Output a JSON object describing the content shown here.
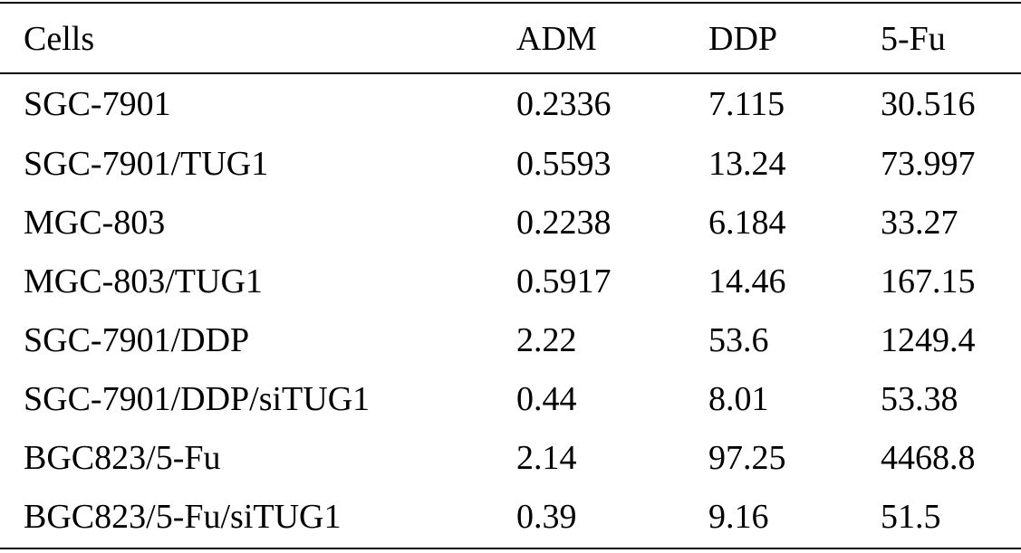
{
  "table": {
    "headers": [
      "Cells",
      "ADM",
      "DDP",
      "5-Fu"
    ],
    "rows": [
      [
        "SGC-7901",
        "0.2336",
        "7.115",
        "30.516"
      ],
      [
        "SGC-7901/TUG1",
        "0.5593",
        "13.24",
        "73.997"
      ],
      [
        "MGC-803",
        "0.2238",
        "6.184",
        "33.27"
      ],
      [
        "MGC-803/TUG1",
        "0.5917",
        "14.46",
        "167.15"
      ],
      [
        "SGC-7901/DDP",
        "2.22",
        "53.6",
        "1249.4"
      ],
      [
        "SGC-7901/DDP/siTUG1",
        "0.44",
        "8.01",
        "53.38"
      ],
      [
        "BGC823/5-Fu",
        "2.14",
        "97.25",
        "4468.8"
      ],
      [
        "BGC823/5-Fu/siTUG1",
        "0.39",
        "9.16",
        "51.5"
      ]
    ]
  }
}
